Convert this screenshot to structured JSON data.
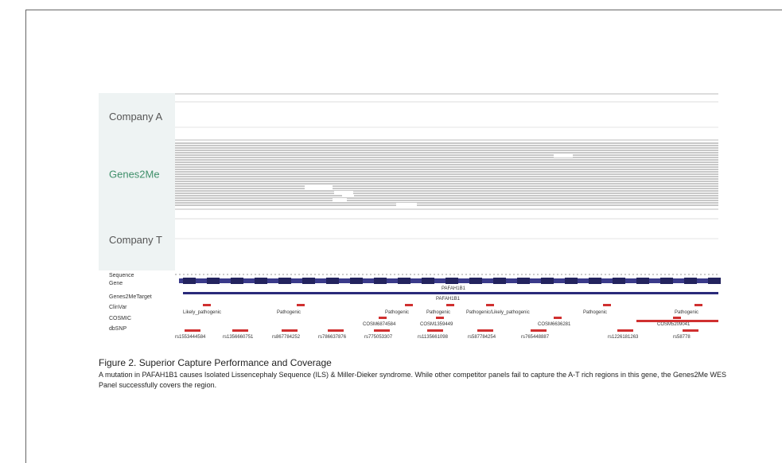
{
  "rows": [
    {
      "label": "Company A"
    },
    {
      "label": "Genes2Me"
    },
    {
      "label": "Company T"
    }
  ],
  "tracks": [
    "Sequence",
    "Gene",
    "Genes2MeTarget",
    "ClinVar",
    "COSMIC",
    "dbSNP"
  ],
  "gene_label": "PAFAH1B1",
  "target_label": "PAFAH1B1",
  "clinvar": [
    "Likely_pathogenic",
    "Pathogenic",
    "Pathogenic",
    "Pathogenic",
    "Pathogenic/Likely_pathogenic",
    "Pathogenic",
    "Pathogenic"
  ],
  "cosmic": [
    "COSM6874584",
    "COSM1359449",
    "COSM6636281",
    "COSM5209041"
  ],
  "dbsnp": [
    "rs1553444584",
    "rs1356660751",
    "rs867784252",
    "rs786637876",
    "rs775053307",
    "rs1135661098",
    "rs587784254",
    "rs765448887",
    "rs1226181263",
    "rs58778"
  ],
  "caption": {
    "title": "Figure 2. Superior Capture Performance and Coverage",
    "text": "A mutation in PAFAH1B1 causes Isolated Lissencephaly Sequence (ILS) & Miller-Dieker syndrome. While other competitor panels fail to capture the A-T rich regions in this gene, the Genes2Me WES Panel successfully covers the region."
  }
}
